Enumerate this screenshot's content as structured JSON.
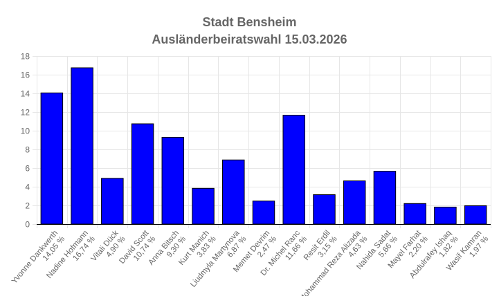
{
  "chart_data": {
    "type": "bar",
    "title": "Stadt Bensheim",
    "subtitle": "Ausländerbeiratswahl 15.03.2026",
    "categories": [
      "Yvonne Dankwerth",
      "Nadine Hofmann",
      "Vitali Dück",
      "David Scott",
      "Anna Bitsch",
      "Kurt Manich",
      "Liudmyla Martynova",
      "Memet Devrim",
      "Dr. Michel Ranc",
      "Resit Erdil",
      "Mohammad Reza Alizada",
      "Nahida Sadat",
      "Mayel Farhat",
      "Abdulrafey Ishaq",
      "Wasif Kamran"
    ],
    "value_labels": [
      "14,05 %",
      "16,74 %",
      "4,90 %",
      "10,74 %",
      "9,30 %",
      "3,83 %",
      "6,87 %",
      "2,47 %",
      "11,66 %",
      "3,15 %",
      "4,63 %",
      "5,66 %",
      "2,20 %",
      "1,82 %",
      "1,97 %"
    ],
    "values": [
      14.05,
      16.74,
      4.9,
      10.74,
      9.3,
      3.83,
      6.87,
      2.47,
      11.66,
      3.15,
      4.63,
      5.66,
      2.2,
      1.82,
      1.97
    ],
    "ylim": [
      0,
      18
    ],
    "yticks": [
      0,
      2,
      4,
      6,
      8,
      10,
      12,
      14,
      16,
      18
    ],
    "grid": true,
    "legend": "none",
    "bar_color": "#0000ff",
    "grid_color": "#e6e6e6",
    "axis_color": "#000000"
  }
}
